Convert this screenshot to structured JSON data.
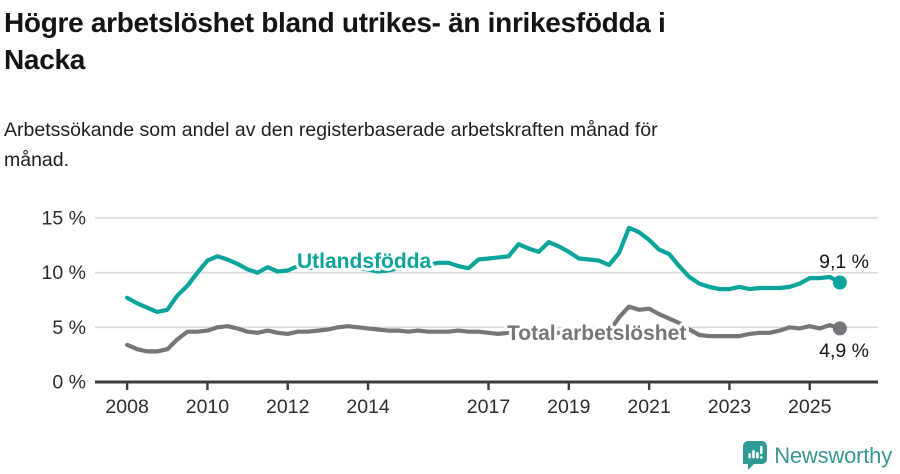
{
  "header": {
    "title_lines": [
      "Högre arbetslöshet bland utrikes- än inrikesfödda i",
      "Nacka"
    ],
    "subtitle_lines": [
      "Arbetssökande som andel av den registerbaserade arbetskraften månad för",
      "månad."
    ]
  },
  "chart_data": {
    "type": "line",
    "unit": "%",
    "grid": true,
    "x_start": 2008.0,
    "x_step_years": 0.25,
    "x_axis": {
      "range": [
        2007.2,
        2026.7
      ],
      "ticks": [
        "2008",
        "2010",
        "2012",
        "2014",
        "2017",
        "2019",
        "2021",
        "2023",
        "2025"
      ],
      "tick_years": [
        2008,
        2010,
        2012,
        2014,
        2017,
        2019,
        2021,
        2023,
        2025
      ]
    },
    "y_axis": {
      "range": [
        0,
        15
      ],
      "ticks": [
        "0 %",
        "5 %",
        "10 %",
        "15 %"
      ],
      "tick_values": [
        0,
        5,
        10,
        15
      ]
    },
    "series": [
      {
        "name": "Utlandsfödda",
        "color": "#0aa49b",
        "end_label": "9,1 %",
        "end_value": 9.1,
        "values": [
          7.7,
          7.2,
          6.8,
          6.4,
          6.6,
          7.9,
          8.8,
          10.0,
          11.1,
          11.5,
          11.2,
          10.8,
          10.3,
          10.0,
          10.5,
          10.1,
          10.2,
          10.6,
          10.4,
          10.5,
          10.8,
          10.6,
          10.5,
          10.4,
          10.3,
          10.1,
          10.2,
          10.4,
          10.4,
          10.5,
          10.7,
          10.9,
          10.9,
          10.6,
          10.4,
          11.2,
          11.3,
          11.4,
          11.5,
          12.6,
          12.2,
          11.9,
          12.8,
          12.4,
          11.9,
          11.3,
          11.2,
          11.1,
          10.7,
          11.8,
          14.1,
          13.7,
          13.0,
          12.1,
          11.7,
          10.6,
          9.6,
          9.0,
          8.7,
          8.5,
          8.5,
          8.7,
          8.5,
          8.6,
          8.6,
          8.6,
          8.7,
          9.0,
          9.5,
          9.5,
          9.6,
          9.1
        ]
      },
      {
        "name": "Total arbetslöshet",
        "color": "#76767a",
        "end_label": "4,9 %",
        "end_value": 4.9,
        "values": [
          3.4,
          3.0,
          2.8,
          2.8,
          3.0,
          3.9,
          4.6,
          4.6,
          4.7,
          5.0,
          5.1,
          4.9,
          4.6,
          4.5,
          4.7,
          4.5,
          4.4,
          4.6,
          4.6,
          4.7,
          4.8,
          5.0,
          5.1,
          5.0,
          4.9,
          4.8,
          4.7,
          4.7,
          4.6,
          4.7,
          4.6,
          4.6,
          4.6,
          4.7,
          4.6,
          4.6,
          4.5,
          4.4,
          4.5,
          4.6,
          4.5,
          4.4,
          4.5,
          4.5,
          4.4,
          4.4,
          4.5,
          4.5,
          4.6,
          5.9,
          6.9,
          6.6,
          6.7,
          6.2,
          5.8,
          5.4,
          4.8,
          4.3,
          4.2,
          4.2,
          4.2,
          4.2,
          4.4,
          4.5,
          4.5,
          4.7,
          5.0,
          4.9,
          5.1,
          4.9,
          5.2,
          4.9
        ]
      }
    ]
  },
  "footer": {
    "brand": "Newsworthy",
    "brand_color": "#399792"
  }
}
